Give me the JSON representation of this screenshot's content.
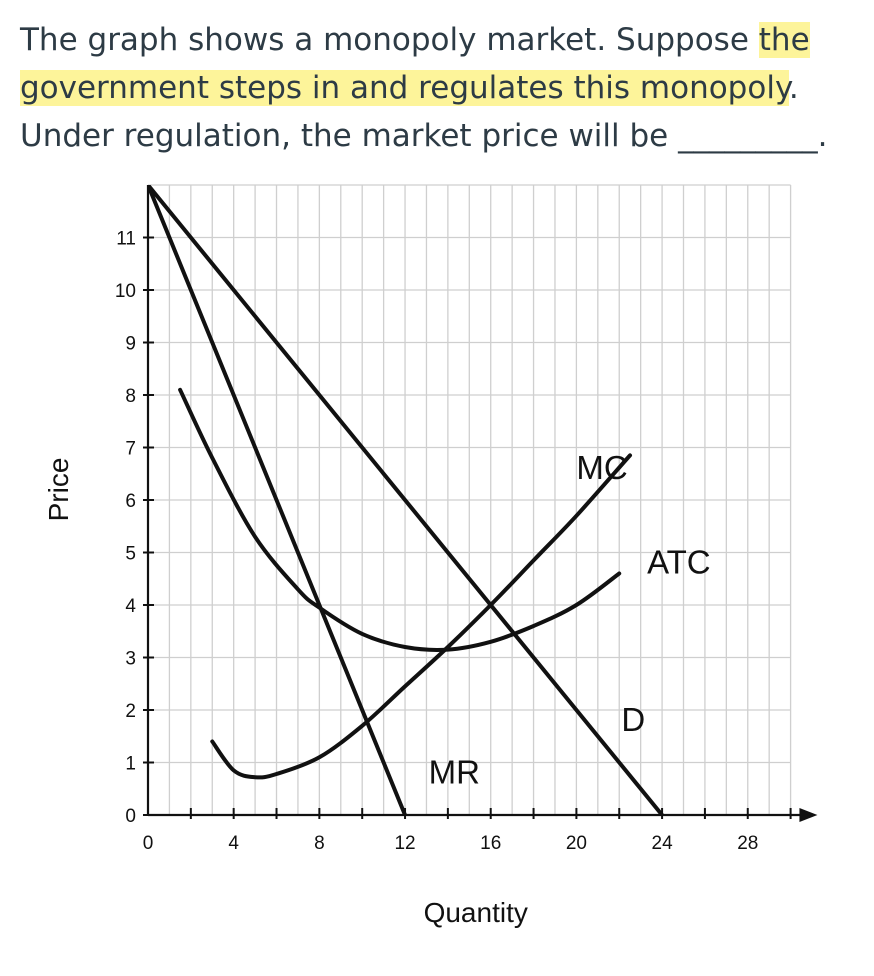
{
  "question": {
    "part1": "The graph shows a monopoly market. Suppose ",
    "highlight": "the government steps in and regulates this monopoly",
    "part2": ". Under regulation, the market price will be ",
    "blank": "_________",
    "end": ".",
    "highlight_color": "#fdf49a"
  },
  "chart_data": {
    "type": "line",
    "xlabel": "Quantity",
    "ylabel": "Price",
    "xlim": [
      0,
      30
    ],
    "ylim": [
      0,
      12
    ],
    "xticks": [
      0,
      4,
      8,
      12,
      16,
      20,
      24,
      28
    ],
    "yticks": [
      0,
      1,
      2,
      3,
      4,
      5,
      6,
      7,
      8,
      9,
      10,
      11
    ],
    "grid": true,
    "series": [
      {
        "name": "D",
        "x": [
          0,
          24
        ],
        "y": [
          12,
          0
        ]
      },
      {
        "name": "MR",
        "x": [
          0,
          12
        ],
        "y": [
          12,
          0
        ]
      },
      {
        "name": "MC",
        "x": [
          3,
          4,
          5,
          6,
          8,
          10,
          12,
          14,
          16,
          18,
          20,
          22.5
        ],
        "y": [
          1.4,
          0.85,
          0.72,
          0.78,
          1.1,
          1.7,
          2.45,
          3.2,
          4.0,
          4.85,
          5.7,
          6.85
        ]
      },
      {
        "name": "ATC",
        "x": [
          1.5,
          3,
          5,
          7,
          8,
          10,
          12,
          14,
          16,
          18,
          20,
          22
        ],
        "y": [
          8.1,
          6.8,
          5.3,
          4.3,
          3.95,
          3.45,
          3.2,
          3.15,
          3.3,
          3.6,
          4.0,
          4.6
        ]
      }
    ],
    "curve_labels": [
      {
        "text": "MC",
        "x": 20,
        "y": 6.4
      },
      {
        "text": "ATC",
        "x": 23.3,
        "y": 4.6
      },
      {
        "text": "D",
        "x": 22.1,
        "y": 1.6
      },
      {
        "text": "MR",
        "x": 13.1,
        "y": 0.6
      }
    ]
  }
}
